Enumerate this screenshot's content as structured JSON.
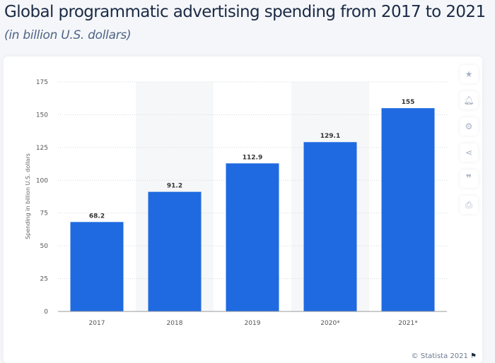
{
  "chart_data": {
    "type": "bar",
    "title": "Global programmatic advertising spending from 2017 to 2021",
    "subtitle": "(in billion U.S. dollars)",
    "xlabel": "",
    "ylabel": "Spending in billion U.S. dollars",
    "categories": [
      "2017",
      "2018",
      "2019",
      "2020*",
      "2021*"
    ],
    "values": [
      68.2,
      91.2,
      112.9,
      129.1,
      155
    ],
    "data_labels": [
      "68.2",
      "91.2",
      "112.9",
      "129.1",
      "155"
    ],
    "ylim": [
      0,
      175
    ],
    "yticks": [
      0,
      25,
      50,
      75,
      100,
      125,
      150,
      175
    ],
    "grid": true,
    "bar_color": "#1f6ae0"
  },
  "toolbar": {
    "icons": [
      "star-icon",
      "bell-icon",
      "gear-icon",
      "share-icon",
      "quote-icon",
      "print-icon"
    ]
  },
  "footer": {
    "credit": "© Statista 2021",
    "flag_icon": "flag-icon"
  }
}
